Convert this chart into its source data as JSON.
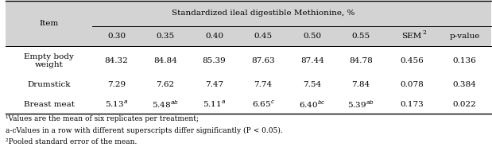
{
  "header_main": "Standardized ileal digestible Methionine, %",
  "col_headers": [
    "0.30",
    "0.35",
    "0.40",
    "0.45",
    "0.50",
    "0.55",
    "SEM2",
    "p-value"
  ],
  "row_label_col": "Item",
  "rows": [
    {
      "label": "Empty body\nweight",
      "values": [
        "84.32",
        "84.84",
        "85.39",
        "87.63",
        "87.44",
        "84.78",
        "0.456",
        "0.136"
      ],
      "superscripts": [
        "",
        "",
        "",
        "",
        "",
        "",
        "",
        ""
      ]
    },
    {
      "label": "Drumstick",
      "values": [
        "7.29",
        "7.62",
        "7.47",
        "7.74",
        "7.54",
        "7.84",
        "0.078",
        "0.384"
      ],
      "superscripts": [
        "",
        "",
        "",
        "",
        "",
        "",
        "",
        ""
      ]
    },
    {
      "label": "Breast meat",
      "values": [
        "5.13",
        "5.48",
        "5.11",
        "6.65",
        "6.40",
        "5.39",
        "0.173",
        "0.022"
      ],
      "superscripts": [
        "a",
        "ab",
        "a",
        "c",
        "bc",
        "ab",
        "",
        ""
      ]
    }
  ],
  "footnotes": [
    "¹Values are the mean of six replicates per treatment;",
    "a-cValues in a row with different superscripts differ significantly (P < 0.05).",
    "²Pooled standard error of the mean."
  ],
  "header_bg": "#d3d3d3",
  "text_color": "#000000",
  "font_size": 7.5,
  "footnote_font_size": 6.5,
  "col_widths_rel": [
    1.55,
    0.88,
    0.88,
    0.88,
    0.88,
    0.88,
    0.88,
    0.95,
    0.95
  ]
}
